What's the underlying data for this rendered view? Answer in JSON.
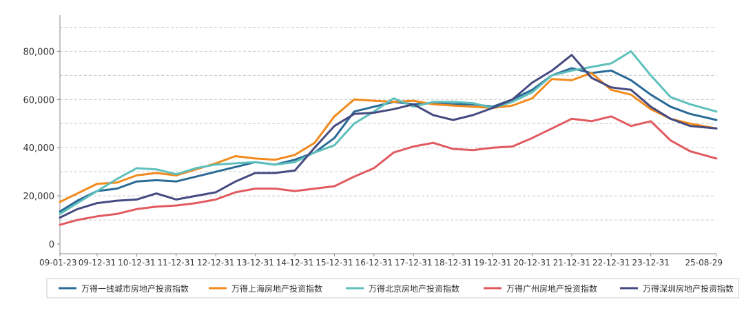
{
  "chart_data": {
    "type": "line",
    "x_tick_labels": [
      "09-01-23",
      "09-12-31",
      "10-12-31",
      "11-12-31",
      "12-12-31",
      "13-12-31",
      "14-12-31",
      "15-12-31",
      "16-12-31",
      "17-12-31",
      "18-12-31",
      "19-12-31",
      "20-12-31",
      "21-12-31",
      "22-12-31",
      "23-12-31",
      "25-08-29"
    ],
    "x_tick_values": [
      2009.06,
      2010.0,
      2011.0,
      2012.0,
      2013.0,
      2014.0,
      2015.0,
      2016.0,
      2017.0,
      2018.0,
      2019.0,
      2020.0,
      2021.0,
      2022.0,
      2023.0,
      2024.0,
      2025.66
    ],
    "xlim": [
      2009.06,
      2025.66
    ],
    "y_tick_labels": [
      "0",
      "20,000",
      "40,000",
      "60,000",
      "80,000"
    ],
    "y_tick_values": [
      0,
      20000,
      40000,
      60000,
      80000
    ],
    "ylim": [
      -4000,
      95000
    ],
    "grid": "horizontal-dashed",
    "legend_position": "bottom",
    "x": [
      2009.06,
      2009.5,
      2010.0,
      2010.5,
      2011.0,
      2011.5,
      2012.0,
      2012.5,
      2013.0,
      2013.5,
      2014.0,
      2014.5,
      2015.0,
      2015.5,
      2016.0,
      2016.5,
      2017.0,
      2017.5,
      2018.0,
      2018.5,
      2019.0,
      2019.5,
      2020.0,
      2020.5,
      2021.0,
      2021.5,
      2022.0,
      2022.5,
      2023.0,
      2023.5,
      2024.0,
      2024.5,
      2025.0,
      2025.66
    ],
    "series": [
      {
        "name": "万得一线城市房地产投资指数",
        "color": "#2a6a96",
        "values": [
          13500,
          18000,
          22000,
          23000,
          26000,
          26500,
          26000,
          28000,
          30000,
          32000,
          34000,
          33000,
          35000,
          38000,
          44000,
          55000,
          57000,
          59000,
          58000,
          58500,
          58000,
          58000,
          57000,
          60000,
          64000,
          70000,
          73000,
          71000,
          72000,
          68000,
          62000,
          57000,
          54000,
          51500
        ]
      },
      {
        "name": "万得上海房地产投资指数",
        "color": "#f28a1e",
        "values": [
          17500,
          21000,
          25000,
          25500,
          28500,
          29500,
          28500,
          31000,
          33500,
          36500,
          35500,
          35000,
          37000,
          42000,
          53000,
          60000,
          59500,
          59000,
          59500,
          58000,
          57500,
          57000,
          56500,
          57500,
          60500,
          68500,
          68000,
          71000,
          64000,
          62000,
          56000,
          52000,
          50000,
          48000
        ]
      },
      {
        "name": "万得北京房地产投资指数",
        "color": "#5ec0bc",
        "values": [
          12500,
          17000,
          22000,
          27000,
          31500,
          31000,
          29000,
          31500,
          33000,
          33500,
          34000,
          33000,
          34000,
          38000,
          41000,
          50000,
          55000,
          60500,
          57000,
          59000,
          59000,
          58500,
          56500,
          59000,
          63000,
          70000,
          72000,
          73500,
          75000,
          80000,
          70000,
          61000,
          58000,
          55000
        ]
      },
      {
        "name": "万得广州房地产投资指数",
        "color": "#e05a5f",
        "values": [
          8000,
          10000,
          11500,
          12500,
          14500,
          15500,
          16000,
          17000,
          18500,
          21500,
          23000,
          23000,
          22000,
          23000,
          24000,
          28000,
          31500,
          38000,
          40500,
          42000,
          39500,
          39000,
          40000,
          40500,
          44000,
          48000,
          52000,
          51000,
          53000,
          49000,
          51000,
          43000,
          38500,
          35500
        ]
      },
      {
        "name": "万得深圳房地产投资指数",
        "color": "#454a80",
        "values": [
          11000,
          14500,
          17000,
          18000,
          18500,
          21000,
          18500,
          20000,
          21500,
          26000,
          29500,
          29500,
          30500,
          40000,
          49000,
          54000,
          54500,
          56000,
          58000,
          53500,
          51500,
          53500,
          56500,
          60000,
          67000,
          72000,
          78500,
          69000,
          65000,
          64000,
          57000,
          52000,
          49000,
          48000
        ]
      }
    ]
  }
}
